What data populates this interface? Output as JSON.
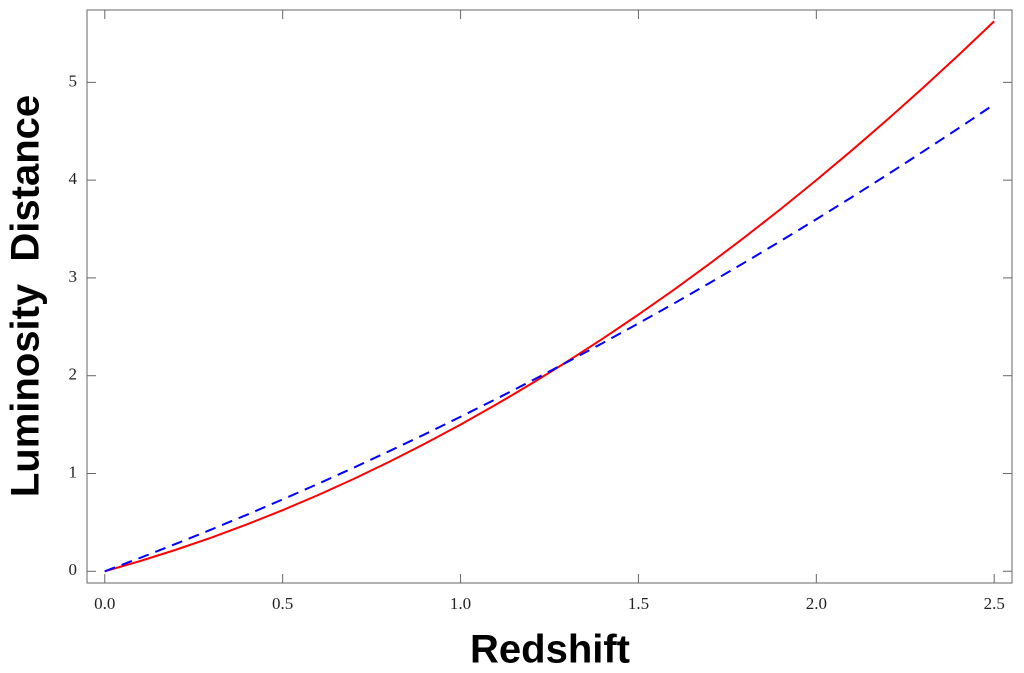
{
  "chart_data": {
    "type": "line",
    "x": [
      0,
      0.1,
      0.2,
      0.3,
      0.4,
      0.5,
      0.6,
      0.7,
      0.8,
      0.9,
      1.0,
      1.1,
      1.2,
      1.3,
      1.4,
      1.5,
      1.6,
      1.7,
      1.8,
      1.9,
      2.0,
      2.1,
      2.2,
      2.3,
      2.4,
      2.5
    ],
    "series": [
      {
        "color": "#ff0000",
        "dash": false,
        "values": [
          0,
          0.105,
          0.22,
          0.345,
          0.48,
          0.625,
          0.78,
          0.945,
          1.12,
          1.305,
          1.5,
          1.705,
          1.92,
          2.145,
          2.38,
          2.625,
          2.88,
          3.145,
          3.42,
          3.705,
          4.0,
          4.305,
          4.62,
          4.945,
          5.28,
          5.625
        ]
      },
      {
        "color": "#0000ff",
        "dash": true,
        "values": [
          0,
          0.138,
          0.281,
          0.428,
          0.579,
          0.735,
          0.895,
          1.06,
          1.229,
          1.402,
          1.58,
          1.762,
          1.949,
          2.14,
          2.335,
          2.535,
          2.739,
          2.948,
          3.161,
          3.378,
          3.6,
          3.826,
          4.057,
          4.292,
          4.531,
          4.775
        ]
      }
    ],
    "xlabel": "Redshift",
    "ylabel": "Luminosity  Distance",
    "xlim": [
      -0.05,
      2.55
    ],
    "ylim": [
      -0.12,
      5.74
    ],
    "xticks": [
      {
        "value": 0,
        "label": "0.0"
      },
      0.5,
      {
        "value": 1,
        "label": "1.0"
      },
      1.5,
      {
        "value": 2,
        "label": "2.0"
      },
      2.5
    ],
    "yticks": [
      0,
      1,
      2,
      3,
      4,
      5
    ]
  }
}
